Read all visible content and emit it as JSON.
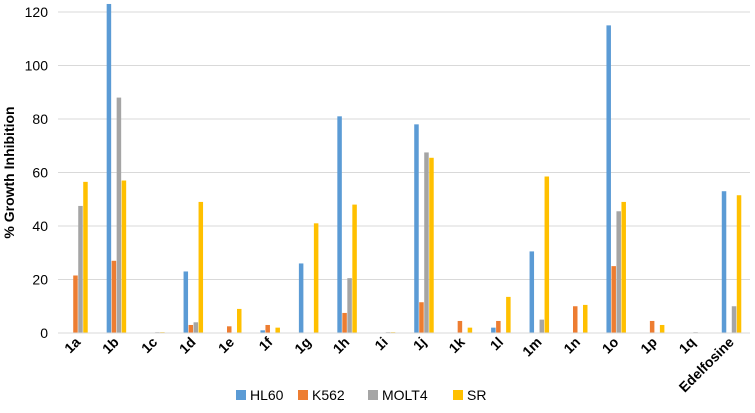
{
  "chart_data": {
    "type": "bar",
    "ylabel": "% Growth Inhibition",
    "xlabel": "",
    "ylim": [
      0,
      120
    ],
    "yticks": [
      0,
      20,
      40,
      60,
      80,
      100,
      120
    ],
    "grid": true,
    "legend_position": "bottom",
    "categories": [
      "1a",
      "1b",
      "1c",
      "1d",
      "1e",
      "1f",
      "1g",
      "1h",
      "1i",
      "1j",
      "1k",
      "1l",
      "1m",
      "1n",
      "1o",
      "1p",
      "1q",
      "Edelfosine"
    ],
    "series": [
      {
        "name": "HL60",
        "color": "#5B9BD5",
        "values": [
          0,
          123,
          0,
          23,
          0,
          1,
          26,
          81,
          0,
          78,
          0,
          2,
          30.5,
          0,
          115,
          0,
          0,
          53
        ]
      },
      {
        "name": "K562",
        "color": "#ED7D31",
        "values": [
          21.5,
          27,
          0,
          3,
          2.5,
          3,
          0,
          7.5,
          0,
          11.5,
          4.5,
          4.5,
          0,
          10,
          25,
          4.5,
          0,
          0
        ]
      },
      {
        "name": "MOLT4",
        "color": "#A5A5A5",
        "values": [
          47.5,
          88,
          0.3,
          4,
          0,
          0,
          0,
          20.5,
          0.3,
          67.5,
          0,
          0,
          5,
          0,
          45.5,
          0,
          0.3,
          10
        ]
      },
      {
        "name": "SR",
        "color": "#FFC000",
        "values": [
          56.5,
          57,
          0.3,
          49,
          9,
          2,
          41,
          48,
          0.3,
          65.5,
          2,
          13.5,
          58.5,
          10.5,
          49,
          3,
          0,
          51.5
        ]
      }
    ]
  }
}
